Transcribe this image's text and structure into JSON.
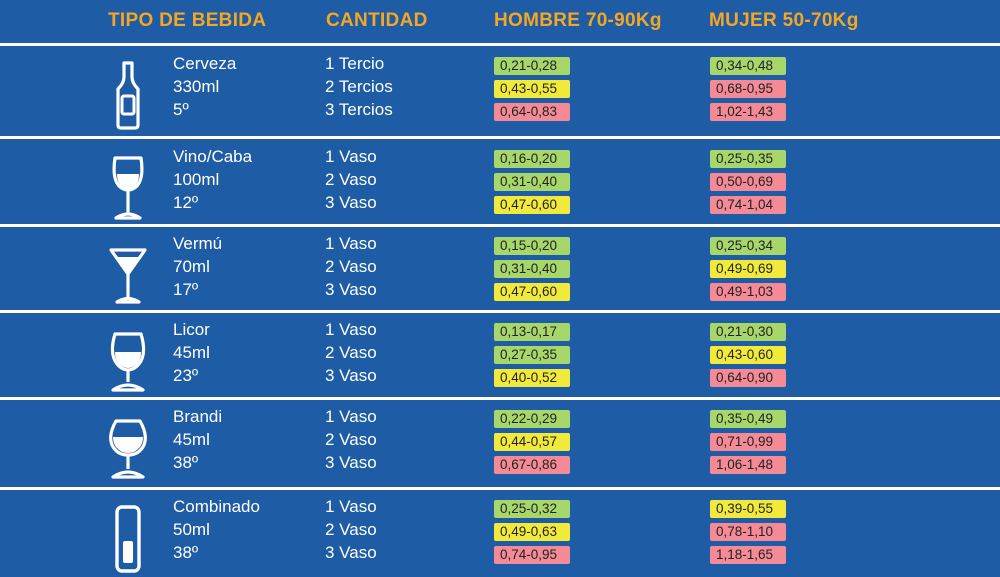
{
  "headers": {
    "drink_type": "TIPO DE BEBIDA",
    "quantity": "CANTIDAD",
    "male": "HOMBRE 70-90Kg",
    "female": "MUJER 50-70Kg"
  },
  "colors": {
    "background": "#1f5ca6",
    "header_text": "#f5a623",
    "low": "#a7d66a",
    "medium": "#f2ea3a",
    "high": "#f38a96"
  },
  "rows": [
    {
      "icon": "beer-bottle-icon",
      "name": "Cerveza",
      "volume": "330ml",
      "degree": "5º",
      "quantities": [
        "1 Tercio",
        "2 Tercios",
        "3 Tercios"
      ],
      "male": [
        {
          "v": "0,21-0,28",
          "c": "green"
        },
        {
          "v": "0,43-0,55",
          "c": "yellow"
        },
        {
          "v": "0,64-0,83",
          "c": "red"
        }
      ],
      "female": [
        {
          "v": "0,34-0,48",
          "c": "green"
        },
        {
          "v": "0,68-0,95",
          "c": "red"
        },
        {
          "v": "1,02-1,43",
          "c": "red"
        }
      ]
    },
    {
      "icon": "wine-glass-icon",
      "name": "Vino/Caba",
      "volume": "100ml",
      "degree": "12º",
      "quantities": [
        "1 Vaso",
        "2 Vaso",
        "3 Vaso"
      ],
      "male": [
        {
          "v": "0,16-0,20",
          "c": "green"
        },
        {
          "v": "0,31-0,40",
          "c": "green"
        },
        {
          "v": "0,47-0,60",
          "c": "yellow"
        }
      ],
      "female": [
        {
          "v": "0,25-0,35",
          "c": "green"
        },
        {
          "v": "0,50-0,69",
          "c": "red"
        },
        {
          "v": "0,74-1,04",
          "c": "red"
        }
      ]
    },
    {
      "icon": "martini-glass-icon",
      "name": "Vermú",
      "volume": "70ml",
      "degree": "17º",
      "quantities": [
        "1 Vaso",
        "2 Vaso",
        "3 Vaso"
      ],
      "male": [
        {
          "v": "0,15-0,20",
          "c": "green"
        },
        {
          "v": "0,31-0,40",
          "c": "green"
        },
        {
          "v": "0,47-0,60",
          "c": "yellow"
        }
      ],
      "female": [
        {
          "v": "0,25-0,34",
          "c": "green"
        },
        {
          "v": "0,49-0,69",
          "c": "yellow"
        },
        {
          "v": "0,49-1,03",
          "c": "red"
        }
      ]
    },
    {
      "icon": "liqueur-glass-icon",
      "name": "Licor",
      "volume": "45ml",
      "degree": "23º",
      "quantities": [
        "1 Vaso",
        "2 Vaso",
        "3 Vaso"
      ],
      "male": [
        {
          "v": "0,13-0,17",
          "c": "green"
        },
        {
          "v": "0,27-0,35",
          "c": "green"
        },
        {
          "v": "0,40-0,52",
          "c": "yellow"
        }
      ],
      "female": [
        {
          "v": "0,21-0,30",
          "c": "green"
        },
        {
          "v": "0,43-0,60",
          "c": "yellow"
        },
        {
          "v": "0,64-0,90",
          "c": "red"
        }
      ]
    },
    {
      "icon": "brandy-glass-icon",
      "name": "Brandi",
      "volume": "45ml",
      "degree": "38º",
      "quantities": [
        "1 Vaso",
        "2 Vaso",
        "3 Vaso"
      ],
      "male": [
        {
          "v": "0,22-0,29",
          "c": "green"
        },
        {
          "v": "0,44-0,57",
          "c": "yellow"
        },
        {
          "v": "0,67-0,86",
          "c": "red"
        }
      ],
      "female": [
        {
          "v": "0,35-0,49",
          "c": "green"
        },
        {
          "v": "0,71-0,99",
          "c": "red"
        },
        {
          "v": "1,06-1,48",
          "c": "red"
        }
      ]
    },
    {
      "icon": "highball-glass-icon",
      "name": "Combinado",
      "volume": "50ml",
      "degree": "38º",
      "quantities": [
        "1 Vaso",
        "2 Vaso",
        "3 Vaso"
      ],
      "male": [
        {
          "v": "0,25-0,32",
          "c": "green"
        },
        {
          "v": "0,49-0,63",
          "c": "yellow"
        },
        {
          "v": "0,74-0,95",
          "c": "red"
        }
      ],
      "female": [
        {
          "v": "0,39-0,55",
          "c": "yellow"
        },
        {
          "v": "0,78-1,10",
          "c": "red"
        },
        {
          "v": "1,18-1,65",
          "c": "red"
        }
      ]
    }
  ]
}
